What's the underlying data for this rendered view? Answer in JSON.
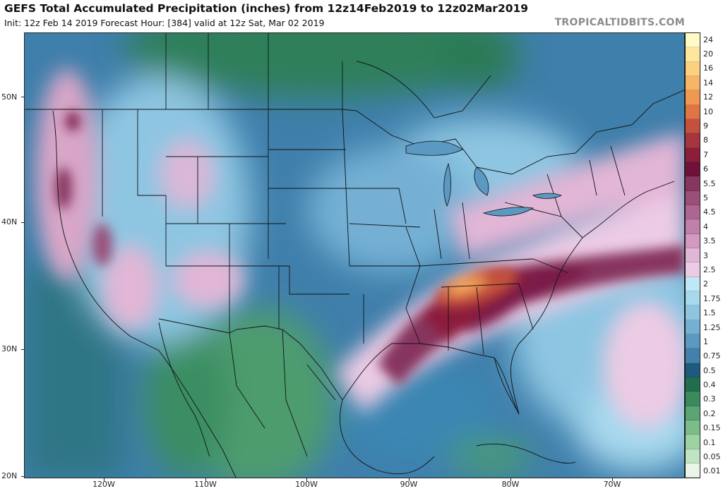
{
  "header": {
    "title": "GEFS Total Accumulated Precipitation (inches) from 12z14Feb2019 to 12z02Mar2019",
    "subtitle": "Init: 12z Feb 14 2019   Forecast Hour: [384]   valid at 12z Sat, Mar 02 2019",
    "credit": "TROPICALTIDBITS.COM"
  },
  "map": {
    "lat_labels": [
      "50N",
      "40N",
      "30N",
      "20N"
    ],
    "lon_labels": [
      "120W",
      "110W",
      "100W",
      "90W",
      "80W",
      "70W"
    ]
  },
  "colorbar": {
    "levels": [
      "24",
      "20",
      "16",
      "14",
      "12",
      "10",
      "9",
      "8",
      "7",
      "6",
      "5.5",
      "5",
      "4.5",
      "4",
      "3.5",
      "3",
      "2.5",
      "2",
      "1.75",
      "1.5",
      "1.25",
      "1",
      "0.75",
      "0.5",
      "0.4",
      "0.3",
      "0.2",
      "0.15",
      "0.1",
      "0.05",
      "0.01"
    ],
    "colors": [
      "#fffbc5",
      "#fde79d",
      "#fbd17f",
      "#f7b566",
      "#ef9852",
      "#df7544",
      "#c3513e",
      "#a6343d",
      "#8c1d3c",
      "#6f1138",
      "#86365f",
      "#9a4f7a",
      "#ad6692",
      "#c080aa",
      "#d29ac0",
      "#e2b6d6",
      "#eccbe4",
      "#bfe8f6",
      "#a7d9ee",
      "#8ec6e2",
      "#74b0d4",
      "#5b98c2",
      "#4380ad",
      "#1e5a7c",
      "#1f6f4e",
      "#3a8a5e",
      "#5aa573",
      "#7bbd88",
      "#9dd3a3",
      "#c0e5c2",
      "#e9f5e6"
    ]
  },
  "features": {
    "high_precip_label": "",
    "note": ""
  }
}
